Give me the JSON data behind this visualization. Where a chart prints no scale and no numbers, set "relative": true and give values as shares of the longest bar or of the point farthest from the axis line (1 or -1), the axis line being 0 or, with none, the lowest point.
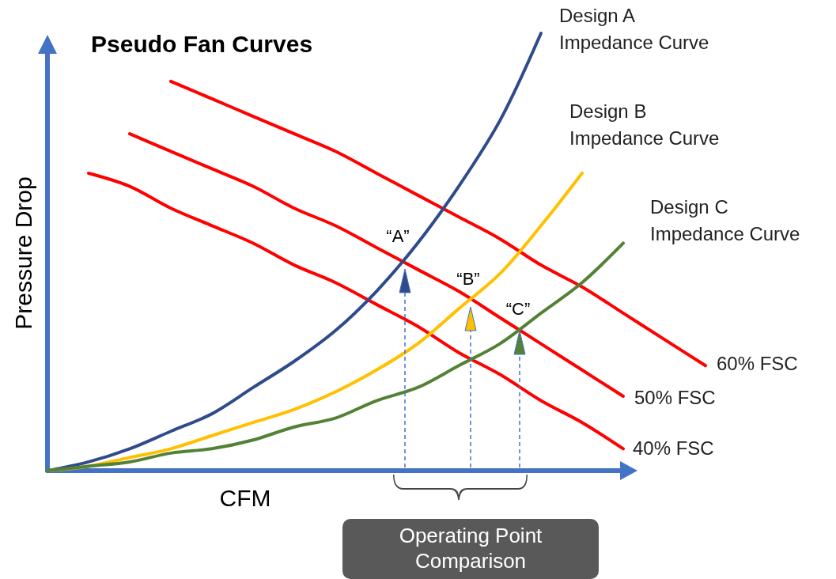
{
  "chart_data": {
    "type": "line",
    "title": "Pseudo Fan Curves",
    "xlabel": "CFM",
    "ylabel": "Pressure Drop",
    "relative": true,
    "legend": false,
    "grid": false,
    "marker": "none",
    "line_style": "solid",
    "categories": [
      null,
      null,
      null,
      null,
      null,
      null,
      null,
      null,
      null,
      null,
      null,
      null,
      null,
      null,
      null,
      null,
      null
    ],
    "series": [
      {
        "name": "60% FSC",
        "color": "#ff0000",
        "values": [
          null,
          null,
          null,
          0.89,
          0.85,
          0.81,
          0.77,
          0.73,
          0.68,
          0.63,
          0.58,
          0.53,
          0.47,
          0.42,
          0.36,
          0.3,
          0.24
        ]
      },
      {
        "name": "50% FSC",
        "color": "#ff0000",
        "values": [
          null,
          null,
          0.77,
          0.73,
          0.69,
          0.65,
          0.6,
          0.56,
          0.51,
          0.46,
          0.41,
          0.35,
          0.29,
          0.23,
          0.17,
          null,
          null
        ]
      },
      {
        "name": "40% FSC",
        "color": "#ff0000",
        "values": [
          null,
          0.68,
          0.65,
          0.6,
          0.56,
          0.52,
          0.47,
          0.43,
          0.38,
          0.33,
          0.27,
          0.22,
          0.16,
          0.11,
          0.05,
          null,
          null
        ]
      },
      {
        "name": "Design A\nImpedance Curve",
        "color": "#2f4b8a",
        "values": [
          0,
          0.02,
          0.05,
          0.09,
          0.13,
          0.19,
          0.25,
          0.32,
          0.41,
          0.52,
          0.65,
          0.8,
          1,
          null,
          null,
          null,
          null
        ]
      },
      {
        "name": "Design B\nImpedance Curve",
        "color": "#ffc000",
        "values": [
          0,
          0.01,
          0.03,
          0.05,
          0.08,
          0.11,
          0.14,
          0.18,
          0.23,
          0.29,
          0.37,
          0.45,
          0.56,
          0.68,
          null,
          null,
          null
        ]
      },
      {
        "name": "Design C\nImpedance Curve",
        "color": "#538135",
        "values": [
          0,
          0.01,
          0.02,
          0.04,
          0.05,
          0.07,
          0.1,
          0.12,
          0.16,
          0.19,
          0.24,
          0.29,
          0.36,
          0.43,
          0.52,
          null,
          null
        ]
      }
    ],
    "annotations": [
      "“A”",
      "“B”",
      "“C”",
      "Operating Point\nComparison"
    ]
  }
}
